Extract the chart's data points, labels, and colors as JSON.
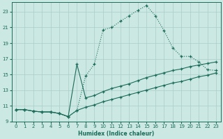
{
  "xlabel": "Humidex (Indice chaleur)",
  "bg_color": "#cce8e2",
  "line_color": "#1a6b5a",
  "grid_color": "#aacccc",
  "xlim": [
    -0.5,
    23.5
  ],
  "ylim": [
    9.0,
    24.2
  ],
  "xticks": [
    0,
    1,
    2,
    3,
    4,
    5,
    6,
    7,
    8,
    9,
    10,
    11,
    12,
    13,
    14,
    15,
    16,
    17,
    18,
    19,
    20,
    21,
    22,
    23
  ],
  "yticks": [
    9,
    11,
    13,
    15,
    17,
    19,
    21,
    23
  ],
  "line1_x": [
    0,
    1,
    2,
    3,
    4,
    5,
    6,
    7,
    8,
    9,
    10,
    11,
    12,
    13,
    14,
    15,
    16,
    17,
    18,
    19,
    20,
    21,
    22,
    23
  ],
  "line1_y": [
    10.5,
    10.5,
    10.3,
    10.2,
    10.2,
    10.0,
    9.6,
    10.4,
    14.8,
    16.3,
    20.7,
    21.0,
    21.8,
    22.5,
    23.2,
    23.8,
    22.5,
    20.6,
    18.4,
    17.3,
    17.3,
    16.6,
    15.6,
    15.5
  ],
  "line2_x": [
    0,
    1,
    2,
    3,
    4,
    5,
    6,
    7,
    8,
    9,
    10,
    11,
    12,
    13,
    14,
    15,
    16,
    17,
    18,
    19,
    20,
    21,
    22,
    23
  ],
  "line2_y": [
    10.5,
    10.5,
    10.3,
    10.2,
    10.2,
    10.0,
    9.6,
    16.3,
    12.0,
    12.3,
    12.8,
    13.2,
    13.5,
    13.8,
    14.2,
    14.6,
    14.9,
    15.2,
    15.5,
    15.7,
    16.0,
    16.2,
    16.4,
    16.6
  ],
  "line3_x": [
    0,
    1,
    2,
    3,
    4,
    5,
    6,
    7,
    8,
    9,
    10,
    11,
    12,
    13,
    14,
    15,
    16,
    17,
    18,
    19,
    20,
    21,
    22,
    23
  ],
  "line3_y": [
    10.5,
    10.5,
    10.3,
    10.2,
    10.2,
    10.0,
    9.6,
    10.4,
    10.8,
    11.1,
    11.5,
    11.8,
    12.1,
    12.4,
    12.7,
    13.0,
    13.3,
    13.6,
    13.9,
    14.1,
    14.4,
    14.7,
    14.9,
    15.2
  ]
}
